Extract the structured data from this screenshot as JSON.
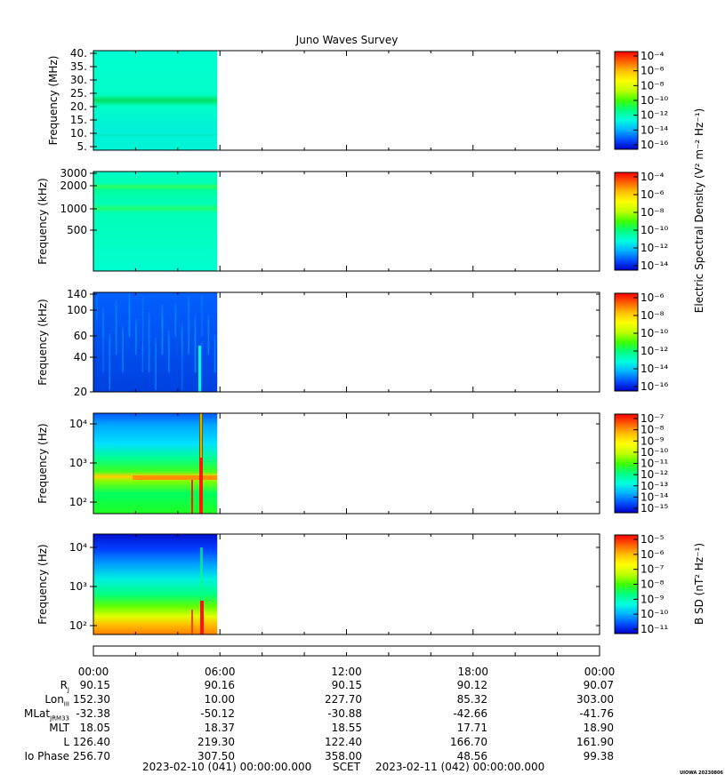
{
  "title": "Juno Waves Survey",
  "colors": {
    "colorbar_stops": [
      "#0000c8",
      "#0050ff",
      "#00b4ff",
      "#00ffe0",
      "#00ff80",
      "#40ff00",
      "#c0ff00",
      "#ffff00",
      "#ffc000",
      "#ff6000",
      "#ff0000"
    ]
  },
  "colorbar_labels": {
    "electric": "Electric Spectral Density (V² m⁻² Hz⁻¹)",
    "magnetic": "B SD (nT² Hz⁻¹)"
  },
  "chart_data": [
    {
      "type": "heatmap",
      "panel": 1,
      "ylabel": "Frequency (MHz)",
      "yticks": [
        "40.",
        "35.",
        "30.",
        "25.",
        "20.",
        "15.",
        "10.",
        "5."
      ],
      "ylim": [
        3.5,
        40.5
      ],
      "data_coverage_hours": [
        0,
        6
      ],
      "colorbar_ticks": [
        "10⁻⁴",
        "10⁻⁶",
        "10⁻⁸",
        "10⁻¹⁰",
        "10⁻¹²",
        "10⁻¹⁴",
        "10⁻¹⁶"
      ]
    },
    {
      "type": "heatmap",
      "panel": 2,
      "ylabel": "Frequency (kHz)",
      "yticks": [
        "3000",
        "2000",
        "1000",
        "500"
      ],
      "yscale": "log",
      "data_coverage_hours": [
        0,
        6
      ],
      "colorbar_ticks": [
        "10⁻⁴",
        "10⁻⁶",
        "10⁻⁸",
        "10⁻¹⁰",
        "10⁻¹²",
        "10⁻¹⁴"
      ]
    },
    {
      "type": "heatmap",
      "panel": 3,
      "ylabel": "Frequency (kHz)",
      "yticks": [
        "140",
        "100",
        "60",
        "40",
        "20"
      ],
      "yscale": "log",
      "data_coverage_hours": [
        0,
        6
      ],
      "colorbar_ticks": [
        "10⁻⁶",
        "10⁻⁸",
        "10⁻¹⁰",
        "10⁻¹²",
        "10⁻¹⁴",
        "10⁻¹⁶"
      ]
    },
    {
      "type": "heatmap",
      "panel": 4,
      "ylabel": "Frequency (Hz)",
      "yticks": [
        "10⁴",
        "10³",
        "10²"
      ],
      "yscale": "log",
      "data_coverage_hours": [
        0,
        6
      ],
      "colorbar_ticks": [
        "10⁻⁷",
        "10⁻⁸",
        "10⁻⁹",
        "10⁻¹⁰",
        "10⁻¹¹",
        "10⁻¹²",
        "10⁻¹³",
        "10⁻¹⁴",
        "10⁻¹⁵"
      ]
    },
    {
      "type": "heatmap",
      "panel": 5,
      "ylabel": "Frequency (Hz)",
      "yticks": [
        "10⁴",
        "10³",
        "10²"
      ],
      "yscale": "log",
      "data_coverage_hours": [
        0,
        6
      ],
      "colorbar_ticks": [
        "10⁻⁵",
        "10⁻⁶",
        "10⁻⁷",
        "10⁻⁸",
        "10⁻⁹",
        "10⁻¹⁰",
        "10⁻¹¹"
      ]
    }
  ],
  "time_axis": {
    "tick_labels": [
      "00:00",
      "06:00",
      "12:00",
      "18:00",
      "00:00"
    ]
  },
  "ephemeris": {
    "labels": [
      "R",
      "Lon",
      "MLat",
      "MLT",
      "L",
      "Io Phase"
    ],
    "label_subscripts": [
      "J",
      "III",
      "JRM33",
      "",
      "",
      ""
    ],
    "rows": [
      [
        "90.15",
        "90.16",
        "90.15",
        "90.12",
        "90.07"
      ],
      [
        "152.30",
        "10.00",
        "227.70",
        "85.32",
        "303.00"
      ],
      [
        "-32.38",
        "-50.12",
        "-30.88",
        "-42.66",
        "-41.76"
      ],
      [
        "18.05",
        "18.37",
        "18.55",
        "17.71",
        "18.90"
      ],
      [
        "126.40",
        "219.30",
        "122.40",
        "166.70",
        "161.90"
      ],
      [
        "256.70",
        "307.50",
        "358.00",
        "48.56",
        "99.38"
      ]
    ]
  },
  "footer": {
    "start": "2023-02-10 (041) 00:00:00.000",
    "scet": "SCET",
    "end": "2023-02-11 (042) 00:00:00.000",
    "stamp": "UIOWA 20230806"
  }
}
